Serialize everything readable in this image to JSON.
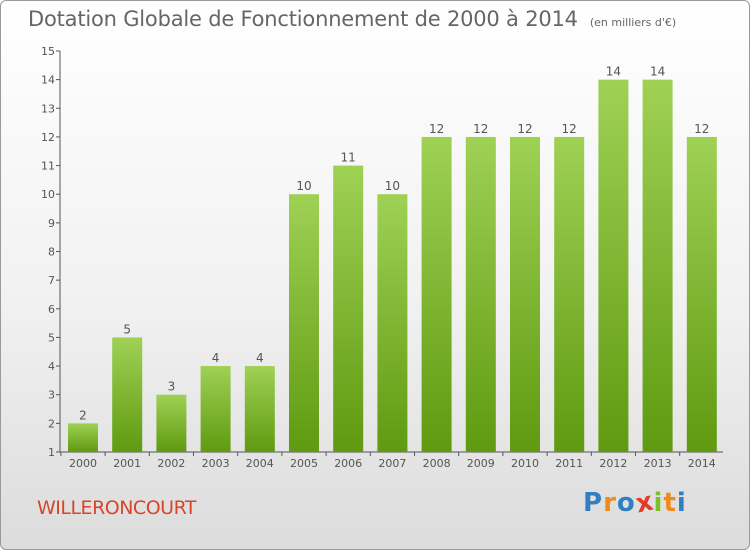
{
  "title": "Dotation Globale de Fonctionnement de 2000 à 2014",
  "unit_label": "(en milliers d'€)",
  "commune": "WILLERONCOURT",
  "logo": {
    "text": "Proxiti",
    "letters": [
      {
        "ch": "P",
        "color": "#2f7fc1"
      },
      {
        "ch": "r",
        "color": "#f08a1a"
      },
      {
        "ch": "o",
        "color": "#2f7fc1"
      },
      {
        "ch": "x",
        "color": "#e23a2b"
      },
      {
        "ch": "i",
        "color": "#7bbf2a"
      },
      {
        "ch": "t",
        "color": "#f08a1a"
      },
      {
        "ch": "i",
        "color": "#2f7fc1"
      }
    ]
  },
  "colors": {
    "bar_top": "#9fd155",
    "bar_bottom": "#5f9a10",
    "axis": "#555555",
    "text": "#555555"
  },
  "chart_data": {
    "type": "bar",
    "title": "Dotation Globale de Fonctionnement de 2000 à 2014",
    "categories": [
      "2000",
      "2001",
      "2002",
      "2003",
      "2004",
      "2005",
      "2006",
      "2007",
      "2008",
      "2009",
      "2010",
      "2011",
      "2012",
      "2013",
      "2014"
    ],
    "values": [
      2,
      5,
      3,
      4,
      4,
      10,
      11,
      10,
      12,
      12,
      12,
      12,
      14,
      14,
      12
    ],
    "ylim": [
      1,
      15
    ],
    "yticks": [
      1,
      2,
      3,
      4,
      5,
      6,
      7,
      8,
      9,
      10,
      11,
      12,
      13,
      14,
      15
    ],
    "ytick_labels": [
      "1",
      "2",
      "3",
      "4",
      "5",
      "6",
      "7",
      "8",
      "9",
      "10",
      "11",
      "12",
      "13",
      "14",
      "15"
    ],
    "grid": false,
    "xlabel": "",
    "ylabel": ""
  }
}
